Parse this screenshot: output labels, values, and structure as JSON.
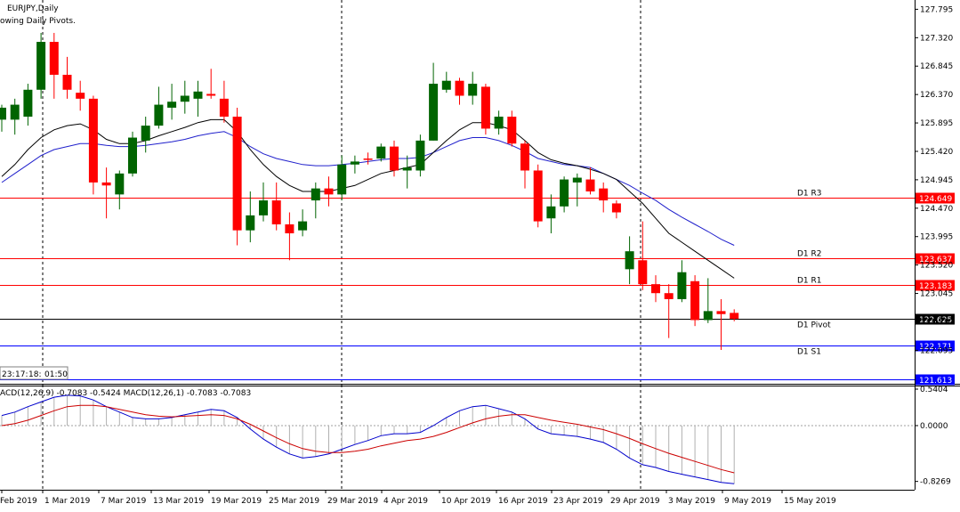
{
  "header": {
    "symbol": "EURJPY,Daily",
    "indicator_note": "owing Daily Pivots."
  },
  "countdown": [
    "23:",
    "17:",
    "18:",
    "01:50"
  ],
  "macd_header": "ACD(12,26,9) -0.7083 -0.5424 MACD(12,26,1) -0.7083 -0.7083",
  "colors": {
    "bull": "#006400",
    "bear": "#ff0000",
    "resistance": "#ff0000",
    "support": "#0000ff",
    "pivot": "#000000",
    "ma_fast": "#000000",
    "ma_slow": "#2020cc",
    "macd_main": "#0000cc",
    "macd_signal": "#cc0000",
    "histogram": "#b0b0b0"
  },
  "chart_data": [
    {
      "type": "candlestick",
      "title": "EURJPY,Daily",
      "ylim": [
        121.55,
        127.95
      ],
      "y_ticks": [
        "127.795",
        "127.320",
        "126.845",
        "126.370",
        "125.895",
        "125.420",
        "124.945",
        "124.470",
        "123.995",
        "123.520",
        "123.045",
        "122.570",
        "122.095"
      ],
      "x_ticks": [
        "Feb 2019",
        "1 Mar 2019",
        "7 Mar 2019",
        "13 Mar 2019",
        "19 Mar 2019",
        "25 Mar 2019",
        "29 Mar 2019",
        "4 Apr 2019",
        "10 Apr 2019",
        "16 Apr 2019",
        "23 Apr 2019",
        "29 Apr 2019",
        "3 May 2019",
        "9 May 2019",
        "15 May 2019"
      ],
      "candles": [
        {
          "o": 125.95,
          "h": 126.2,
          "l": 125.75,
          "c": 126.15
        },
        {
          "o": 125.95,
          "h": 126.3,
          "l": 125.7,
          "c": 126.2
        },
        {
          "o": 126.0,
          "h": 126.55,
          "l": 125.85,
          "c": 126.45
        },
        {
          "o": 126.45,
          "h": 127.4,
          "l": 126.3,
          "c": 127.25
        },
        {
          "o": 127.25,
          "h": 127.4,
          "l": 126.3,
          "c": 126.7
        },
        {
          "o": 126.7,
          "h": 127.0,
          "l": 126.3,
          "c": 126.45
        },
        {
          "o": 126.4,
          "h": 126.6,
          "l": 126.1,
          "c": 126.3
        },
        {
          "o": 126.3,
          "h": 126.35,
          "l": 124.7,
          "c": 124.9
        },
        {
          "o": 124.9,
          "h": 125.15,
          "l": 124.3,
          "c": 124.85
        },
        {
          "o": 124.7,
          "h": 125.1,
          "l": 124.45,
          "c": 125.05
        },
        {
          "o": 125.05,
          "h": 125.75,
          "l": 125.0,
          "c": 125.65
        },
        {
          "o": 125.6,
          "h": 126.0,
          "l": 125.4,
          "c": 125.85
        },
        {
          "o": 125.85,
          "h": 126.5,
          "l": 125.8,
          "c": 126.2
        },
        {
          "o": 126.15,
          "h": 126.55,
          "l": 125.95,
          "c": 126.25
        },
        {
          "o": 126.25,
          "h": 126.6,
          "l": 126.05,
          "c": 126.35
        },
        {
          "o": 126.3,
          "h": 126.6,
          "l": 126.0,
          "c": 126.42
        },
        {
          "o": 126.38,
          "h": 126.8,
          "l": 126.3,
          "c": 126.35
        },
        {
          "o": 126.3,
          "h": 126.6,
          "l": 125.9,
          "c": 126.0
        },
        {
          "o": 126.0,
          "h": 126.15,
          "l": 123.85,
          "c": 124.1
        },
        {
          "o": 124.1,
          "h": 124.75,
          "l": 123.9,
          "c": 124.35
        },
        {
          "o": 124.35,
          "h": 124.9,
          "l": 124.25,
          "c": 124.6
        },
        {
          "o": 124.6,
          "h": 124.9,
          "l": 124.1,
          "c": 124.2
        },
        {
          "o": 124.2,
          "h": 124.4,
          "l": 123.6,
          "c": 124.05
        },
        {
          "o": 124.1,
          "h": 124.45,
          "l": 124.0,
          "c": 124.25
        },
        {
          "o": 124.6,
          "h": 124.9,
          "l": 124.3,
          "c": 124.8
        },
        {
          "o": 124.8,
          "h": 125.0,
          "l": 124.5,
          "c": 124.7
        },
        {
          "o": 124.7,
          "h": 125.35,
          "l": 124.6,
          "c": 125.2
        },
        {
          "o": 125.2,
          "h": 125.35,
          "l": 125.05,
          "c": 125.25
        },
        {
          "o": 125.3,
          "h": 125.4,
          "l": 125.2,
          "c": 125.28
        },
        {
          "o": 125.3,
          "h": 125.55,
          "l": 125.25,
          "c": 125.5
        },
        {
          "o": 125.5,
          "h": 125.6,
          "l": 125.0,
          "c": 125.1
        },
        {
          "o": 125.1,
          "h": 125.35,
          "l": 124.8,
          "c": 125.15
        },
        {
          "o": 125.1,
          "h": 125.7,
          "l": 125.0,
          "c": 125.6
        },
        {
          "o": 125.6,
          "h": 126.9,
          "l": 125.6,
          "c": 126.55
        },
        {
          "o": 126.45,
          "h": 126.75,
          "l": 126.4,
          "c": 126.6
        },
        {
          "o": 126.6,
          "h": 126.65,
          "l": 126.2,
          "c": 126.35
        },
        {
          "o": 126.35,
          "h": 126.75,
          "l": 126.2,
          "c": 126.55
        },
        {
          "o": 126.5,
          "h": 126.55,
          "l": 125.7,
          "c": 125.8
        },
        {
          "o": 125.8,
          "h": 126.1,
          "l": 125.7,
          "c": 126.0
        },
        {
          "o": 126.0,
          "h": 126.1,
          "l": 125.5,
          "c": 125.55
        },
        {
          "o": 125.55,
          "h": 125.6,
          "l": 124.8,
          "c": 125.1
        },
        {
          "o": 125.1,
          "h": 125.2,
          "l": 124.15,
          "c": 124.25
        },
        {
          "o": 124.3,
          "h": 124.7,
          "l": 124.05,
          "c": 124.5
        },
        {
          "o": 124.5,
          "h": 125.0,
          "l": 124.4,
          "c": 124.95
        },
        {
          "o": 124.9,
          "h": 125.05,
          "l": 124.5,
          "c": 124.98
        },
        {
          "o": 124.95,
          "h": 125.15,
          "l": 124.7,
          "c": 124.75
        },
        {
          "o": 124.8,
          "h": 124.9,
          "l": 124.4,
          "c": 124.6
        },
        {
          "o": 124.55,
          "h": 124.6,
          "l": 124.3,
          "c": 124.4
        },
        {
          "o": 123.45,
          "h": 124.0,
          "l": 123.2,
          "c": 123.75
        },
        {
          "o": 123.6,
          "h": 124.25,
          "l": 123.1,
          "c": 123.2
        },
        {
          "o": 123.2,
          "h": 123.35,
          "l": 122.9,
          "c": 123.05
        },
        {
          "o": 123.05,
          "h": 123.2,
          "l": 122.3,
          "c": 122.95
        },
        {
          "o": 122.95,
          "h": 123.6,
          "l": 122.9,
          "c": 123.4
        },
        {
          "o": 123.25,
          "h": 123.35,
          "l": 122.5,
          "c": 122.6
        },
        {
          "o": 122.6,
          "h": 123.3,
          "l": 122.55,
          "c": 122.75
        },
        {
          "o": 122.75,
          "h": 122.95,
          "l": 122.1,
          "c": 122.7
        },
        {
          "o": 122.72,
          "h": 122.78,
          "l": 122.58,
          "c": 122.62
        }
      ],
      "ma_fast": [
        125.0,
        125.2,
        125.45,
        125.65,
        125.78,
        125.85,
        125.88,
        125.78,
        125.62,
        125.55,
        125.55,
        125.6,
        125.68,
        125.75,
        125.82,
        125.9,
        125.95,
        125.95,
        125.75,
        125.45,
        125.2,
        125.0,
        124.85,
        124.75,
        124.75,
        124.75,
        124.8,
        124.85,
        124.95,
        125.05,
        125.1,
        125.15,
        125.2,
        125.4,
        125.6,
        125.78,
        125.9,
        125.9,
        125.85,
        125.78,
        125.6,
        125.4,
        125.28,
        125.22,
        125.18,
        125.12,
        125.05,
        124.95,
        124.75,
        124.55,
        124.3,
        124.05,
        123.9,
        123.75,
        123.6,
        123.45,
        123.3
      ],
      "ma_slow": [
        124.9,
        125.05,
        125.2,
        125.35,
        125.45,
        125.5,
        125.55,
        125.55,
        125.52,
        125.5,
        125.5,
        125.52,
        125.55,
        125.58,
        125.62,
        125.68,
        125.72,
        125.75,
        125.65,
        125.5,
        125.38,
        125.3,
        125.25,
        125.2,
        125.18,
        125.18,
        125.2,
        125.22,
        125.25,
        125.28,
        125.3,
        125.3,
        125.32,
        125.4,
        125.5,
        125.6,
        125.65,
        125.65,
        125.6,
        125.52,
        125.42,
        125.3,
        125.25,
        125.2,
        125.18,
        125.15,
        125.05,
        124.95,
        124.85,
        124.72,
        124.6,
        124.45,
        124.32,
        124.2,
        124.08,
        123.95,
        123.85
      ],
      "pivot_levels": [
        {
          "label": "D1 R3",
          "price": "124.649",
          "value": 124.649
        },
        {
          "label": "D1 R2",
          "price": "123.637",
          "value": 123.637
        },
        {
          "label": "D1 R1",
          "price": "123.183",
          "value": 123.183
        },
        {
          "label": "D1 Pivot",
          "price": "122.625",
          "value": 122.625
        },
        {
          "label": "D1 S1",
          "price": "122.171",
          "value": 122.171
        },
        {
          "label": "",
          "price": "121.613",
          "value": 121.613
        }
      ]
    },
    {
      "type": "line",
      "title": "MACD(12,26,9)",
      "ylim": [
        -0.95,
        0.58
      ],
      "y_ticks": [
        "0.5404",
        "0.0000",
        "-0.8269"
      ],
      "macd": [
        0.15,
        0.2,
        0.28,
        0.35,
        0.42,
        0.45,
        0.44,
        0.38,
        0.28,
        0.2,
        0.12,
        0.1,
        0.1,
        0.12,
        0.16,
        0.2,
        0.24,
        0.22,
        0.12,
        -0.05,
        -0.2,
        -0.32,
        -0.42,
        -0.48,
        -0.46,
        -0.42,
        -0.35,
        -0.28,
        -0.22,
        -0.15,
        -0.12,
        -0.12,
        -0.1,
        0.0,
        0.12,
        0.22,
        0.28,
        0.3,
        0.25,
        0.2,
        0.1,
        -0.05,
        -0.12,
        -0.14,
        -0.16,
        -0.2,
        -0.25,
        -0.35,
        -0.48,
        -0.58,
        -0.62,
        -0.68,
        -0.72,
        -0.76,
        -0.8,
        -0.84,
        -0.86
      ],
      "signal": [
        0.0,
        0.03,
        0.08,
        0.15,
        0.22,
        0.28,
        0.3,
        0.3,
        0.28,
        0.24,
        0.2,
        0.16,
        0.14,
        0.13,
        0.14,
        0.15,
        0.16,
        0.15,
        0.1,
        0.02,
        -0.08,
        -0.18,
        -0.27,
        -0.34,
        -0.38,
        -0.4,
        -0.4,
        -0.38,
        -0.35,
        -0.3,
        -0.26,
        -0.22,
        -0.2,
        -0.16,
        -0.1,
        -0.03,
        0.04,
        0.1,
        0.14,
        0.16,
        0.16,
        0.12,
        0.08,
        0.05,
        0.02,
        -0.02,
        -0.06,
        -0.12,
        -0.19,
        -0.27,
        -0.34,
        -0.41,
        -0.47,
        -0.53,
        -0.59,
        -0.65,
        -0.7
      ]
    }
  ]
}
